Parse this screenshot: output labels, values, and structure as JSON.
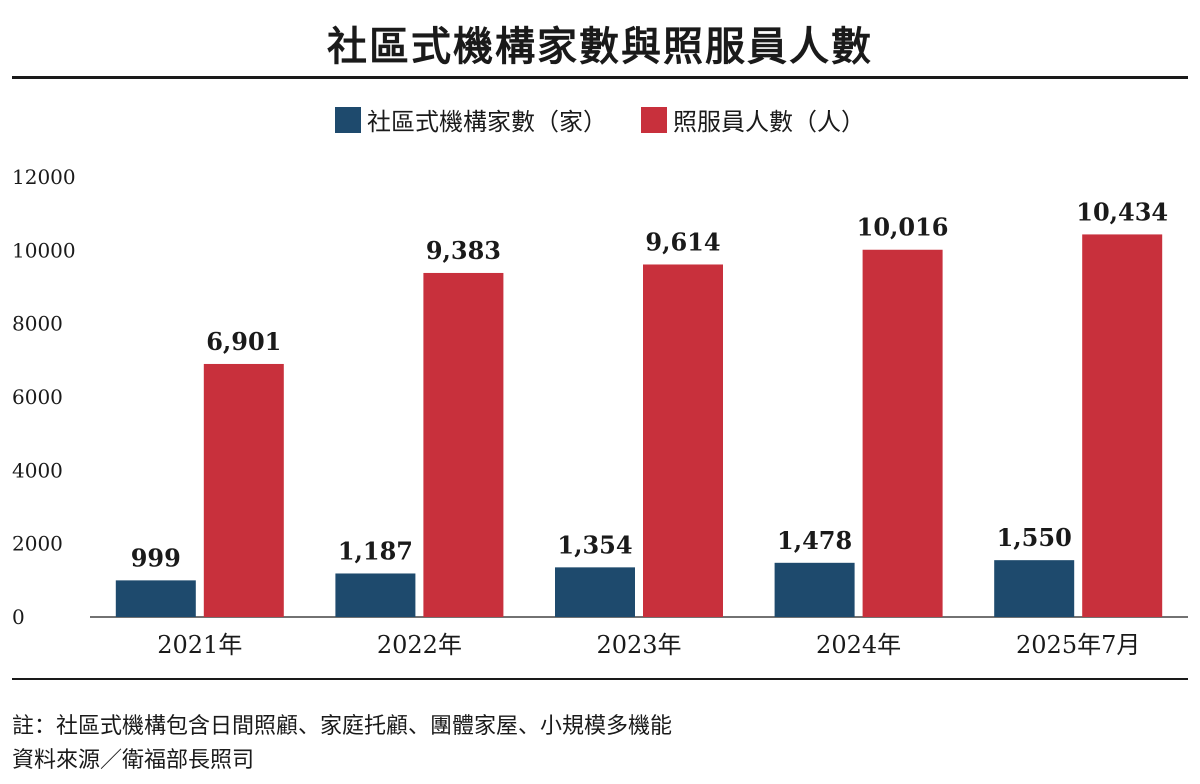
{
  "title": "社區式機構家數與照服員人數",
  "colors": {
    "series_1": "#1e4a6d",
    "series_2": "#c8303c"
  },
  "chart_data": {
    "type": "bar",
    "title": "社區式機構家數與照服員人數",
    "categories": [
      "2021年",
      "2022年",
      "2023年",
      "2024年",
      "2025年7月"
    ],
    "series": [
      {
        "name": "社區式機構家數（家）",
        "values": [
          999,
          1187,
          1354,
          1478,
          1550
        ],
        "labels": [
          "999",
          "1,187",
          "1,354",
          "1,478",
          "1,550"
        ]
      },
      {
        "name": "照服員人數（人）",
        "values": [
          6901,
          9383,
          9614,
          10016,
          10434
        ],
        "labels": [
          "6,901",
          "9,383",
          "9,614",
          "10,016",
          "10,434"
        ]
      }
    ],
    "ylim": [
      0,
      12000
    ],
    "yticks": [
      "0",
      "2000",
      "4000",
      "6000",
      "8000",
      "10000",
      "12000"
    ],
    "legend": "top-center",
    "grid": false
  },
  "footnotes": {
    "note": "註：社區式機構包含日間照顧、家庭托顧、團體家屋、小規模多機能",
    "source": "資料來源／衛福部長照司"
  }
}
